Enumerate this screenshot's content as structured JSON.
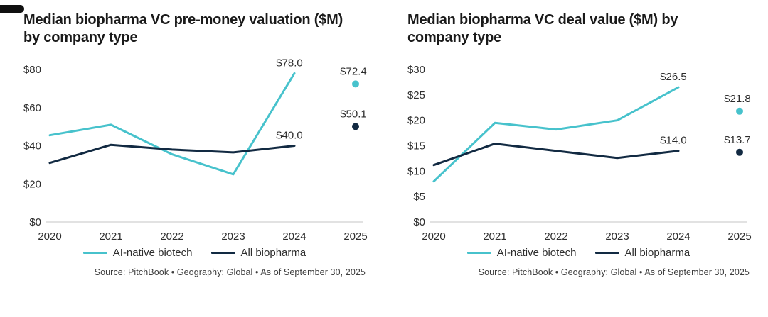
{
  "colors": {
    "teal": "#47C2CC",
    "navy": "#122A42",
    "baseline": "#D9D9D9",
    "title_text": "#1a1a1a",
    "axis_text": "#2e2e2e",
    "source_text": "#3d3d3d"
  },
  "corner_mark": {
    "color": "#101010"
  },
  "legend": {
    "items": [
      {
        "label": "AI-native biotech",
        "color_key": "teal"
      },
      {
        "label": "All biopharma",
        "color_key": "navy"
      }
    ]
  },
  "chart_data": [
    {
      "type": "line",
      "title": "Median biopharma VC pre-money valuation ($M) by company type",
      "title_lines": [
        "Median biopharma VC pre-money valuation ($M)",
        "by company type"
      ],
      "x_labels": [
        "2020",
        "2021",
        "2022",
        "2023",
        "2024",
        "2025"
      ],
      "ylim": [
        0,
        80
      ],
      "y_ticks": [
        {
          "value": 0,
          "label": "$0"
        },
        {
          "value": 20,
          "label": "$20"
        },
        {
          "value": 40,
          "label": "$40"
        },
        {
          "value": 60,
          "label": "$60"
        },
        {
          "value": 80,
          "label": "$80"
        }
      ],
      "grid": false,
      "legend_position": "bottom",
      "series": [
        {
          "name": "AI-native biotech",
          "color_key": "teal",
          "x": [
            "2020",
            "2021",
            "2022",
            "2023",
            "2024"
          ],
          "values": [
            45.5,
            51.0,
            35.5,
            25.0,
            78.0
          ],
          "end_label": "$78.0",
          "isolated_point": {
            "x_label": "2025",
            "value": 72.4,
            "label": "$72.4"
          }
        },
        {
          "name": "All biopharma",
          "color_key": "navy",
          "x": [
            "2020",
            "2021",
            "2022",
            "2023",
            "2024"
          ],
          "values": [
            31.0,
            40.5,
            38.0,
            36.5,
            40.0
          ],
          "end_label": "$40.0",
          "isolated_point": {
            "x_label": "2025",
            "value": 50.1,
            "label": "$50.1"
          }
        }
      ],
      "source": "Source: PitchBook  •  Geography: Global  •  As of September 30, 2025"
    },
    {
      "type": "line",
      "title": "Median biopharma VC deal value ($M) by company type",
      "title_lines": [
        "Median biopharma VC deal value ($M) by",
        "company type"
      ],
      "x_labels": [
        "2020",
        "2021",
        "2022",
        "2023",
        "2024",
        "2025"
      ],
      "ylim": [
        0,
        30
      ],
      "y_ticks": [
        {
          "value": 0,
          "label": "$0"
        },
        {
          "value": 5,
          "label": "$5"
        },
        {
          "value": 10,
          "label": "$10"
        },
        {
          "value": 15,
          "label": "$15"
        },
        {
          "value": 20,
          "label": "$20"
        },
        {
          "value": 25,
          "label": "$25"
        },
        {
          "value": 30,
          "label": "$30"
        }
      ],
      "grid": false,
      "legend_position": "bottom",
      "series": [
        {
          "name": "AI-native biotech",
          "color_key": "teal",
          "x": [
            "2020",
            "2021",
            "2022",
            "2023",
            "2024"
          ],
          "values": [
            8.0,
            19.5,
            18.2,
            20.0,
            26.5
          ],
          "end_label": "$26.5",
          "isolated_point": {
            "x_label": "2025",
            "value": 21.8,
            "label": "$21.8"
          }
        },
        {
          "name": "All biopharma",
          "color_key": "navy",
          "x": [
            "2020",
            "2021",
            "2022",
            "2023",
            "2024"
          ],
          "values": [
            11.2,
            15.4,
            14.0,
            12.6,
            14.0
          ],
          "end_label": "$14.0",
          "isolated_point": {
            "x_label": "2025",
            "value": 13.7,
            "label": "$13.7"
          }
        }
      ],
      "source": "Source: PitchBook  •  Geography: Global  •  As of September 30, 2025"
    }
  ]
}
